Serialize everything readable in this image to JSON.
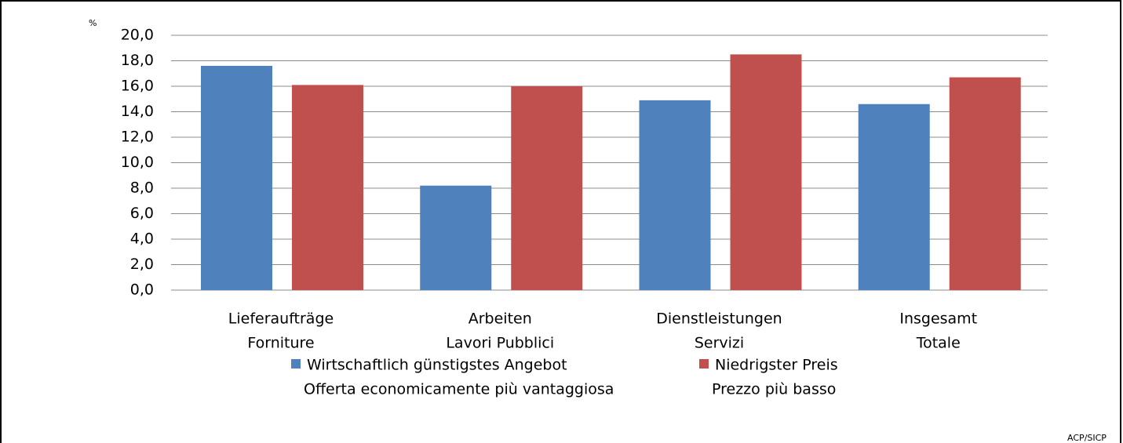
{
  "chart_data": {
    "type": "bar",
    "y_unit": "%",
    "source": "ACP/SICP",
    "categories": [
      [
        "Lieferaufträge",
        "Forniture"
      ],
      [
        "Arbeiten",
        "Lavori Pubblici"
      ],
      [
        "Dienstleistungen",
        "Servizi"
      ],
      [
        "Insgesamt",
        "Totale"
      ]
    ],
    "series": [
      {
        "name": [
          "Wirtschaftlich günstigstes Angebot",
          "Offerta economicamente più vantaggiosa"
        ],
        "color": "#4f81bd",
        "values": [
          17.6,
          8.2,
          14.9,
          14.6
        ]
      },
      {
        "name": [
          "Niedrigster Preis",
          "Prezzo più basso"
        ],
        "color": "#c0504d",
        "values": [
          16.1,
          16.0,
          18.5,
          16.7
        ]
      }
    ],
    "ylim": [
      0,
      20
    ],
    "yticks": [
      {
        "value": 0,
        "label": "0,0"
      },
      {
        "value": 2,
        "label": "2,0"
      },
      {
        "value": 4,
        "label": "4,0"
      },
      {
        "value": 6,
        "label": "6,0"
      },
      {
        "value": 8,
        "label": "8,0"
      },
      {
        "value": 10,
        "label": "10,0"
      },
      {
        "value": 12,
        "label": "12,0"
      },
      {
        "value": 14,
        "label": "14,0"
      },
      {
        "value": 16,
        "label": "16,0"
      },
      {
        "value": 18,
        "label": "18,0"
      },
      {
        "value": 20,
        "label": "20,0"
      }
    ],
    "grid": true,
    "legend": "bottom"
  }
}
